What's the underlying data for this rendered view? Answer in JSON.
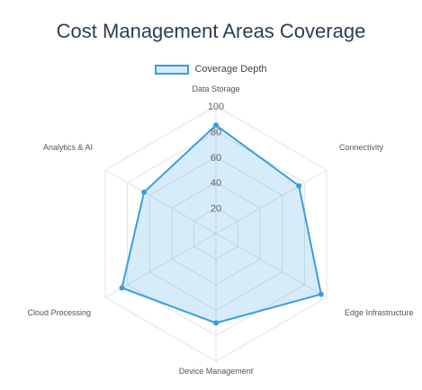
{
  "chart_data": {
    "type": "radar",
    "title": "Cost Management Areas Coverage",
    "categories": [
      "Data Storage",
      "Connectivity",
      "Edge Infrastructure",
      "Device Management",
      "Cloud Processing",
      "Analytics & AI"
    ],
    "series": [
      {
        "name": "Coverage Depth",
        "values": [
          85,
          75,
          95,
          70,
          85,
          65
        ]
      }
    ],
    "rlim": [
      0,
      100
    ],
    "ticks": [
      20,
      40,
      60,
      80,
      100
    ],
    "tick_labels": [
      "20",
      "40",
      "60",
      "80",
      "100"
    ],
    "grid": true,
    "legend": "top-center",
    "colors": {
      "line": "#3b9de0",
      "fill": "rgba(54,162,235,0.2)",
      "grid": "#e3e3e3"
    }
  }
}
